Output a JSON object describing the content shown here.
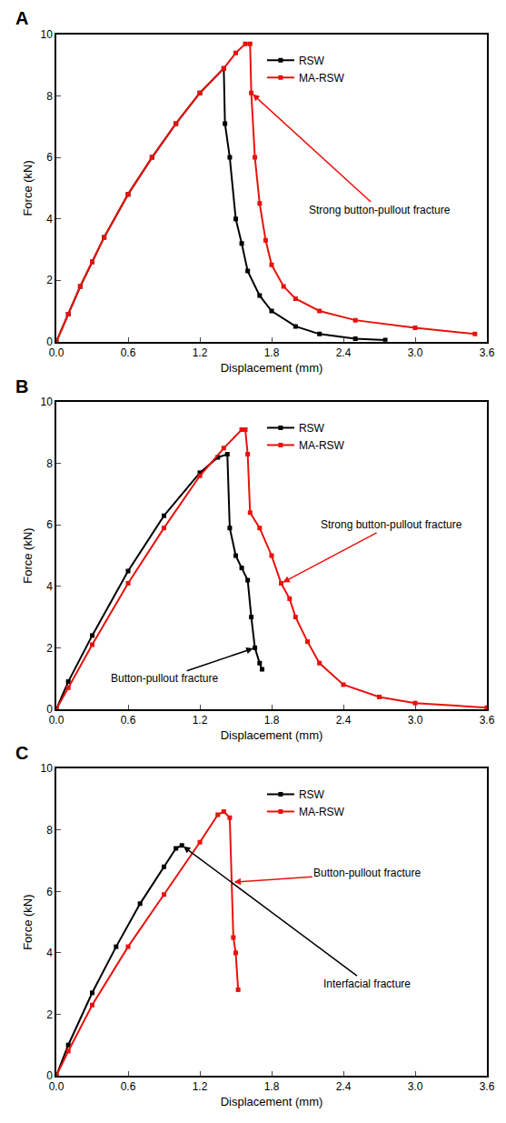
{
  "chart_data": [
    {
      "type": "line",
      "title": "A",
      "x_label": "Displacement (mm)",
      "y_label": "Force (kN)",
      "xlim": [
        0,
        3.6
      ],
      "xticks": [
        {
          "value": 0,
          "label": "0.0"
        },
        0.6,
        1.2,
        1.8,
        2.4,
        {
          "value": 3,
          "label": "3.0"
        },
        3.6
      ],
      "ylim": [
        0,
        10
      ],
      "yticks": [
        0,
        2,
        4,
        6,
        8,
        10
      ],
      "legend": "top",
      "series": [
        {
          "name": "RSW",
          "color": "#000000",
          "marker": "square",
          "x": [
            0,
            0.1,
            0.2,
            0.3,
            0.4,
            0.6,
            0.8,
            1.0,
            1.2,
            1.4,
            1.41,
            1.45,
            1.5,
            1.55,
            1.6,
            1.7,
            1.8,
            2.0,
            2.2,
            2.5,
            2.75
          ],
          "values": [
            0,
            0.9,
            1.8,
            2.6,
            3.4,
            4.8,
            6.0,
            7.1,
            8.1,
            8.9,
            7.1,
            6.0,
            4.0,
            3.2,
            2.3,
            1.5,
            1.0,
            0.5,
            0.25,
            0.1,
            0.05
          ]
        },
        {
          "name": "MA-RSW",
          "color": "#e8120c",
          "marker": "square",
          "x": [
            0,
            0.1,
            0.2,
            0.3,
            0.4,
            0.6,
            0.8,
            1.0,
            1.2,
            1.4,
            1.5,
            1.58,
            1.62,
            1.63,
            1.66,
            1.7,
            1.75,
            1.8,
            1.9,
            2.0,
            2.2,
            2.5,
            3.0,
            3.5
          ],
          "values": [
            0,
            0.9,
            1.8,
            2.6,
            3.4,
            4.8,
            6.0,
            7.1,
            8.1,
            8.9,
            9.4,
            9.7,
            9.7,
            8.1,
            6.0,
            4.5,
            3.3,
            2.5,
            1.8,
            1.4,
            1.0,
            0.7,
            0.45,
            0.25
          ]
        }
      ],
      "annotations": [
        {
          "text": "Strong button-pullout fracture",
          "x": 1.63,
          "y": 8.1,
          "color": "#e8120c"
        }
      ]
    },
    {
      "type": "line",
      "title": "B",
      "x_label": "Displacement (mm)",
      "y_label": "Force (kN)",
      "xlim": [
        0,
        3.6
      ],
      "xticks": [
        {
          "value": 0,
          "label": "0.0"
        },
        0.6,
        1.2,
        1.8,
        2.4,
        {
          "value": 3,
          "label": "3.0"
        },
        3.6
      ],
      "ylim": [
        0,
        10
      ],
      "yticks": [
        0,
        2,
        4,
        6,
        8,
        10
      ],
      "legend": "top",
      "series": [
        {
          "name": "RSW",
          "color": "#000000",
          "marker": "square",
          "x": [
            0,
            0.1,
            0.3,
            0.6,
            0.9,
            1.2,
            1.35,
            1.43,
            1.45,
            1.5,
            1.55,
            1.6,
            1.63,
            1.66,
            1.7,
            1.72
          ],
          "values": [
            0,
            0.9,
            2.4,
            4.5,
            6.3,
            7.7,
            8.2,
            8.3,
            5.9,
            5.0,
            4.6,
            4.2,
            3.0,
            2.0,
            1.5,
            1.3
          ]
        },
        {
          "name": "MA-RSW",
          "color": "#e8120c",
          "marker": "square",
          "x": [
            0,
            0.1,
            0.3,
            0.6,
            0.9,
            1.2,
            1.4,
            1.55,
            1.58,
            1.6,
            1.62,
            1.7,
            1.8,
            1.88,
            1.95,
            2.0,
            2.1,
            2.2,
            2.4,
            2.7,
            3.0,
            3.6
          ],
          "values": [
            0,
            0.7,
            2.1,
            4.1,
            5.9,
            7.6,
            8.5,
            9.1,
            9.1,
            8.3,
            6.4,
            5.9,
            5.0,
            4.1,
            3.6,
            3.0,
            2.2,
            1.5,
            0.8,
            0.4,
            0.2,
            0.05
          ]
        }
      ],
      "annotations": [
        {
          "text": "Button-pullout fracture",
          "x": 1.66,
          "y": 2.0,
          "color": "#000000"
        },
        {
          "text": "Strong button-pullout fracture",
          "x": 1.88,
          "y": 4.1,
          "color": "#e8120c"
        }
      ]
    },
    {
      "type": "line",
      "title": "C",
      "x_label": "Displacement (mm)",
      "y_label": "Force (kN)",
      "xlim": [
        0,
        3.6
      ],
      "xticks": [
        {
          "value": 0,
          "label": "0.0"
        },
        0.6,
        1.2,
        1.8,
        2.4,
        {
          "value": 3,
          "label": "3.0"
        },
        3.6
      ],
      "ylim": [
        0,
        10
      ],
      "yticks": [
        0,
        2,
        4,
        6,
        8,
        10
      ],
      "legend": "top",
      "series": [
        {
          "name": "RSW",
          "color": "#000000",
          "marker": "square",
          "x": [
            0,
            0.1,
            0.3,
            0.5,
            0.7,
            0.9,
            1.0,
            1.05
          ],
          "values": [
            0,
            1.0,
            2.7,
            4.2,
            5.6,
            6.8,
            7.4,
            7.5
          ]
        },
        {
          "name": "MA-RSW",
          "color": "#e8120c",
          "marker": "square",
          "x": [
            0,
            0.1,
            0.3,
            0.6,
            0.9,
            1.2,
            1.35,
            1.4,
            1.45,
            1.48,
            1.5,
            1.52
          ],
          "values": [
            0,
            0.8,
            2.3,
            4.2,
            5.9,
            7.6,
            8.5,
            8.6,
            8.4,
            4.5,
            4.0,
            2.8
          ]
        }
      ],
      "annotations": [
        {
          "text": "Button-pullout fracture",
          "x": 1.47,
          "y": 6.3,
          "color": "#e8120c"
        },
        {
          "text": "Interfacial fracture",
          "x": 1.05,
          "y": 7.5,
          "color": "#000000"
        }
      ]
    }
  ]
}
